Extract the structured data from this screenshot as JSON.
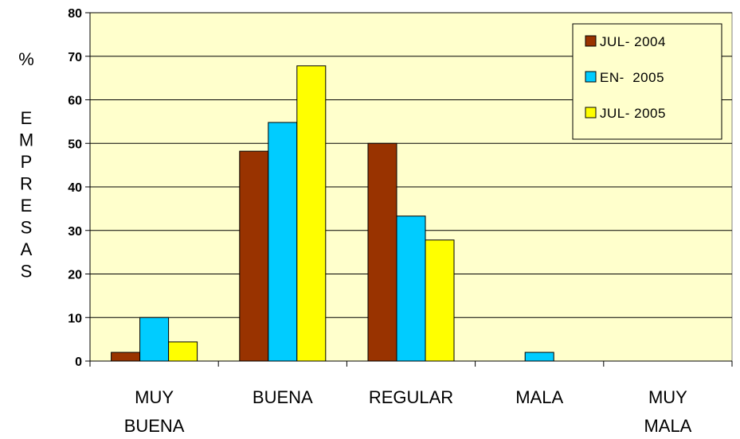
{
  "chart_data": {
    "type": "bar",
    "ylabel": "% EMPRESAS",
    "ylim": [
      0,
      80
    ],
    "yticks": [
      0,
      10,
      20,
      30,
      40,
      50,
      60,
      70,
      80
    ],
    "grid": true,
    "legend_position": "top-right",
    "categories": [
      [
        "MUY",
        "BUENA"
      ],
      [
        "BUENA"
      ],
      [
        "REGULAR"
      ],
      [
        "MALA"
      ],
      [
        "MUY",
        "MALA"
      ]
    ],
    "series": [
      {
        "name": "JUL- 2004",
        "color": "#993300",
        "values": [
          2,
          48.2,
          50,
          0,
          0
        ]
      },
      {
        "name": "EN-  2005",
        "color": "#00CCFF",
        "values": [
          10,
          54.8,
          33.3,
          2,
          0
        ]
      },
      {
        "name": "JUL- 2005",
        "color": "#FFFF00",
        "values": [
          4.4,
          67.8,
          27.8,
          0,
          0
        ]
      }
    ],
    "plot_background": "#FFFFCC"
  }
}
